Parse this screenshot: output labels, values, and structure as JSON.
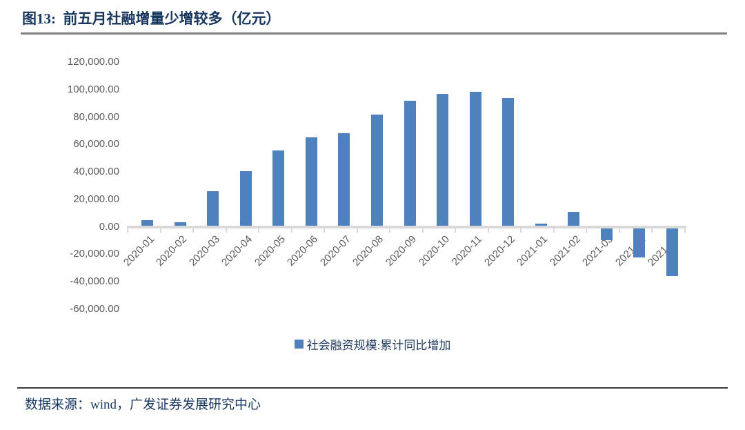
{
  "header": {
    "title": "图13:  前五月社融增量少增较多（亿元）"
  },
  "footer": {
    "source": "数据来源：wind，广发证券发展研究中心"
  },
  "chart_data": {
    "type": "bar",
    "title": "前五月社融增量少增较多（亿元）",
    "unit": "亿元",
    "categories": [
      "2020-01",
      "2020-02",
      "2020-03",
      "2020-04",
      "2020-05",
      "2020-06",
      "2020-07",
      "2020-08",
      "2020-09",
      "2020-10",
      "2020-11",
      "2020-12",
      "2021-01",
      "2021-02",
      "2021-03",
      "2021-04",
      "2021-05"
    ],
    "series": [
      {
        "name": "社会融资规模:累计同比增加",
        "values": [
          3700,
          2500,
          25000,
          39500,
          54500,
          64000,
          67000,
          81000,
          91000,
          96000,
          97500,
          93000,
          1200,
          10000,
          -8500,
          -21500,
          -35000
        ]
      }
    ],
    "ylim": [
      -60000,
      120000
    ],
    "y_tick_interval": 20000,
    "y_ticks": [
      {
        "value": 120000,
        "label": "120,000.00"
      },
      {
        "value": 100000,
        "label": "100,000.00"
      },
      {
        "value": 80000,
        "label": "80,000.00"
      },
      {
        "value": 60000,
        "label": "60,000.00"
      },
      {
        "value": 40000,
        "label": "40,000.00"
      },
      {
        "value": 20000,
        "label": "20,000.00"
      },
      {
        "value": 0,
        "label": "0.00"
      },
      {
        "value": -20000,
        "label": "-20,000.00"
      },
      {
        "value": -40000,
        "label": "-40,000.00"
      },
      {
        "value": -60000,
        "label": "-60,000.00"
      }
    ],
    "grid": false,
    "legend_position": "bottom",
    "legend_label": "社会融资规模:累计同比增加",
    "colors": {
      "bar": "#4F81BD",
      "axis_line": "#D9D9D9",
      "tick_label": "#5A5A5A",
      "title_text": "#17365D"
    }
  }
}
